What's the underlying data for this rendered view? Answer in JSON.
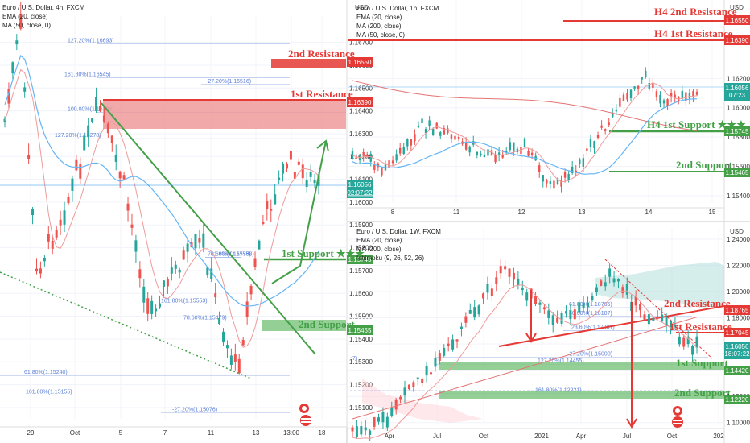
{
  "colors": {
    "up": "#26a69a",
    "down": "#ef5350",
    "red": "#e53935",
    "green": "#43a047",
    "blue": "#2196f3",
    "fib": "#5b7fd6",
    "ma": "#64b5f6",
    "ema": "#ef9a9a"
  },
  "panel_left": {
    "title": "Euro / U.S. Dollar, 4h, FXCM",
    "ind1": "EMA (20, close)",
    "ind2": "MA (50, close, 0)",
    "yaxis": {
      "label": "USD",
      "ticks": [
        "1.16700",
        "1.16600",
        "1.16500",
        "1.16400",
        "1.16300",
        "1.16200",
        "1.16100",
        "1.16000",
        "1.15900",
        "1.15800",
        "1.15700",
        "1.15600",
        "1.15500",
        "1.15400",
        "1.15300",
        "1.15200",
        "1.15100"
      ],
      "ylim": [
        1.1505,
        1.1678
      ]
    },
    "xaxis": {
      "ticks": [
        "29",
        "Oct",
        "5",
        "7",
        "11",
        "13",
        "13:00",
        "18"
      ]
    },
    "fibs": [
      {
        "label": "127.20%(1.16693)",
        "value": 1.16693
      },
      {
        "label": "161.80%(1.16545)",
        "value": 1.16545
      },
      {
        "label": "-27.20%(1.16516)",
        "value": 1.16516
      },
      {
        "label": "100.00%(1.16394)",
        "value": 1.16394
      },
      {
        "label": "127.20%(1.16278)",
        "value": 1.16278
      },
      {
        "label": "61.80%(1.15240)",
        "value": 1.1524
      },
      {
        "label": "161.80%(1.15155)",
        "value": 1.15155
      },
      {
        "label": "-27.20%(1.15076)",
        "value": 1.15076
      },
      {
        "label": "161.80%(1.15553)",
        "value": 1.15553
      },
      {
        "label": "78.60%(1.15479)",
        "value": 1.15479
      },
      {
        "label": "78.60%(1.15758)",
        "value": 1.15758
      },
      {
        "label": "61.80%(1.15758)",
        "value": 1.15758
      }
    ],
    "zones": {
      "r2": "2nd Resistance",
      "r1": "1st Resistance",
      "s1": "1st Support ★★★",
      "s2": "2nd Support"
    },
    "tags": {
      "r2": "1.16550",
      "r1": "1.16390",
      "price": "1.16056",
      "countdown": "02:07:22",
      "s1": "1.15745",
      "s2": "1.15455"
    }
  },
  "panel_tr": {
    "title": "Euro / U.S. Dollar, 1h, FXCM",
    "ind1": "EMA (20, close)",
    "ind2": "MA (200, close)",
    "ind3": "MA (50, close, 0)",
    "yaxis": {
      "label": "USD",
      "ticks": [
        "1.16200",
        "1.16000",
        "1.15800",
        "1.15600",
        "1.15400"
      ],
      "ylim": [
        1.1535,
        1.1668
      ]
    },
    "xaxis": {
      "ticks": [
        "8",
        "11",
        "12",
        "13",
        "14",
        "15"
      ]
    },
    "zones": {
      "h4r2": "H4 2nd Resistance",
      "h4r1": "H4 1st Resistance",
      "h4s1": "H4 1st Support ★★★",
      "s2": "2nd Support"
    },
    "tags": {
      "h4r2": "1.16550",
      "h4r1": "1.16390",
      "price": "1.16056",
      "countdown": "07:23",
      "h4s1": "1.15745",
      "s2": "1.15465"
    }
  },
  "panel_br": {
    "title": "Euro / U.S. Dollar, 1W, FXCM",
    "ind1": "EMA (20, close)",
    "ind2": "MA (200, close)",
    "ind3": "Ichimoku (9, 26, 52, 26)",
    "yaxis": {
      "label": "USD",
      "ticks": [
        "1.24000",
        "1.22000",
        "1.20000",
        "1.18000",
        "1.16000",
        "1.14000",
        "1.12000",
        "1.10000"
      ],
      "ylim": [
        1.098,
        1.243
      ]
    },
    "xaxis": {
      "ticks": [
        "Apr",
        "Jul",
        "Oct",
        "2021",
        "Apr",
        "Jul",
        "Oct",
        "202"
      ]
    },
    "fibs": [
      {
        "label": "61.80%(1.18766)",
        "value": 1.18766
      },
      {
        "label": "50.00%(1.18107)",
        "value": 1.18107
      },
      {
        "label": "23.60%(1.17031)",
        "value": 1.17031
      },
      {
        "label": "-27.20%(1.15000)",
        "value": 1.15
      },
      {
        "label": "127.20%(1.14455)",
        "value": 1.14455
      },
      {
        "label": "161.80%(1.12221)",
        "value": 1.12221
      }
    ],
    "side_label": ":7)",
    "zones": {
      "r2": "2nd Resistance",
      "r1": "1st Resistance",
      "s1": "1st Support",
      "s2": "2nd Support"
    },
    "tags": {
      "r2": "1.18765",
      "r1": "1.17045",
      "price": "1.16056",
      "countdown": "18:07:22",
      "s1": "1.14420",
      "s2": "1.12220"
    }
  }
}
